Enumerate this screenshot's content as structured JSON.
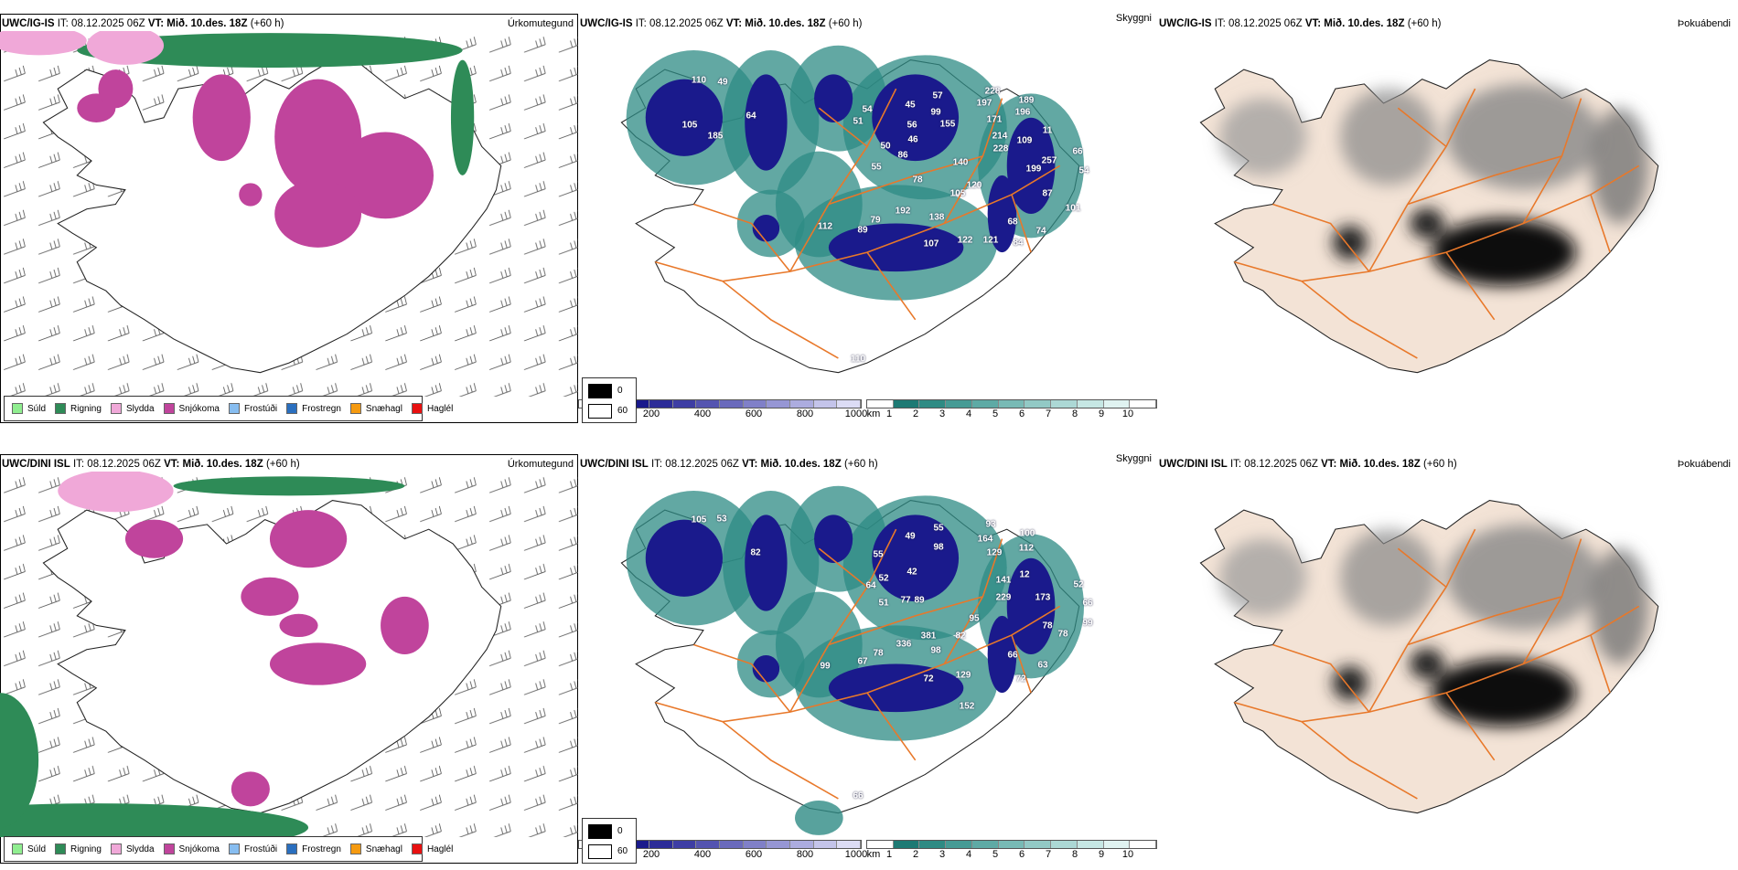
{
  "panels": [
    {
      "model": "UWC/IG-IS",
      "it_label": "IT:",
      "it": "08.12.2025 06Z",
      "vt_label": "VT:",
      "vt": "Mið. 10.des. 18Z",
      "lead": "(+60 h)"
    },
    {
      "model": "UWC/DINI ISL",
      "it_label": "IT:",
      "it": "08.12.2025 06Z",
      "vt_label": "VT:",
      "vt": "Mið. 10.des. 18Z",
      "lead": "(+60 h)"
    }
  ],
  "titles": {
    "precip_type": "Úrkomutegund",
    "visibility": "Skyggni",
    "fog": "Þokuábendi"
  },
  "precip_legend": [
    {
      "label": "Súld",
      "color": "#90ee90"
    },
    {
      "label": "Rigning",
      "color": "#2e8b57"
    },
    {
      "label": "Slydda",
      "color": "#f0a8d8"
    },
    {
      "label": "Snjókoma",
      "color": "#c0449c"
    },
    {
      "label": "Frostúði",
      "color": "#87bdf0"
    },
    {
      "label": "Frostregn",
      "color": "#2a6fbf"
    },
    {
      "label": "Snæhagl",
      "color": "#f59a10"
    },
    {
      "label": "Haglél",
      "color": "#e81010"
    }
  ],
  "visibility_m": {
    "unit": "m",
    "ticks": [
      "0",
      "200",
      "400",
      "600",
      "800",
      "1000"
    ]
  },
  "visibility_km": {
    "unit": "km",
    "ticks": [
      "1",
      "2",
      "3",
      "4",
      "5",
      "6",
      "7",
      "8",
      "9",
      "10"
    ]
  },
  "fog_legend": {
    "dark": "0",
    "light": "60"
  },
  "labels_top": [
    "110",
    "49",
    "105",
    "185",
    "64",
    "54",
    "51",
    "50",
    "86",
    "55",
    "78",
    "45",
    "56",
    "46",
    "57",
    "99",
    "155",
    "228",
    "197",
    "189",
    "196",
    "171",
    "214",
    "109",
    "228",
    "140",
    "120",
    "105",
    "192",
    "79",
    "89",
    "138",
    "107",
    "122",
    "121",
    "84",
    "68",
    "74",
    "87",
    "199",
    "257",
    "66",
    "54",
    "101",
    "11",
    "112",
    "110"
  ],
  "labels_bottom": [
    "105",
    "53",
    "82",
    "55",
    "64",
    "52",
    "51",
    "49",
    "42",
    "77",
    "89",
    "55",
    "98",
    "93",
    "164",
    "100",
    "112",
    "129",
    "141",
    "229",
    "12",
    "173",
    "95",
    "82",
    "381",
    "336",
    "78",
    "67",
    "98",
    "72",
    "129",
    "72",
    "152",
    "66",
    "63",
    "78",
    "52",
    "66",
    "99",
    "78",
    "99",
    "66"
  ],
  "colors": {
    "snow": "#c0449c",
    "rain": "#2e8b57",
    "sleet": "#f0a8d8",
    "vis_dark": "#1a1a8c",
    "vis_teal": "#2e8b84",
    "roads": "#e8782a",
    "fog_land": "#f3e3d6"
  }
}
